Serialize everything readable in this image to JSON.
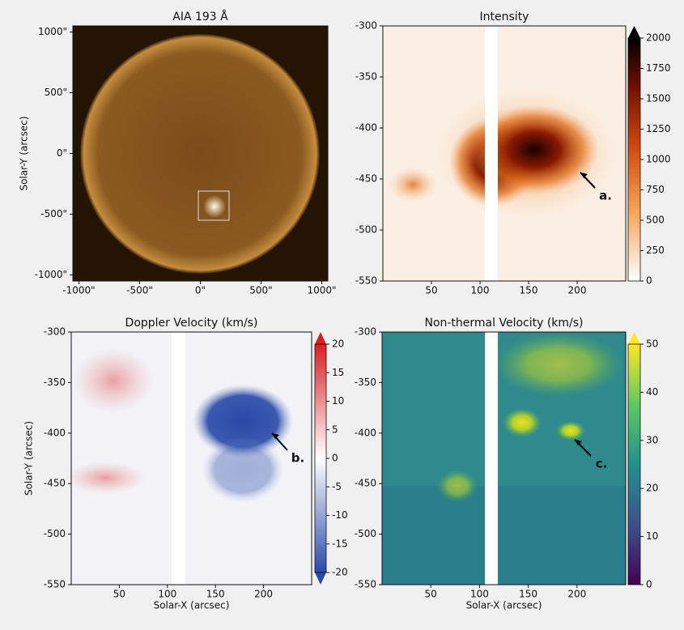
{
  "chart_data": [
    {
      "type": "image",
      "title": "AIA 193 Å",
      "ylabel": "Solar-Y (arcsec)",
      "xlim": [
        -1050,
        1050
      ],
      "ylim": [
        -1050,
        1050
      ],
      "xticks": [
        {
          "value": -1000,
          "label": "-1000\""
        },
        {
          "value": -500,
          "label": "-500\""
        },
        {
          "value": 0,
          "label": "0\""
        },
        {
          "value": 500,
          "label": "500\""
        },
        {
          "value": 1000,
          "label": "1000\""
        }
      ],
      "yticks": [
        {
          "value": -1000,
          "label": "-1000\""
        },
        {
          "value": -500,
          "label": "-500\""
        },
        {
          "value": 0,
          "label": "0\""
        },
        {
          "value": 500,
          "label": "500\""
        },
        {
          "value": 1000,
          "label": "1000\""
        }
      ]
    },
    {
      "type": "image",
      "title": "Intensity",
      "xlim": [
        0,
        250
      ],
      "ylim": [
        -550,
        -300
      ],
      "xticks": [
        50,
        100,
        150,
        200
      ],
      "yticks": [
        -300,
        -350,
        -400,
        -450,
        -500,
        -550
      ],
      "colorbar": {
        "lim": [
          0,
          2000
        ],
        "ticks": [
          0,
          250,
          500,
          750,
          1000,
          1250,
          1500,
          1750,
          2000
        ]
      },
      "annotation": "a."
    },
    {
      "type": "image",
      "title": "Doppler Velocity (km/s)",
      "xlabel": "Solar-X (arcsec)",
      "ylabel": "Solar-Y (arcsec)",
      "xlim": [
        0,
        250
      ],
      "ylim": [
        -550,
        -300
      ],
      "xticks": [
        50,
        100,
        150,
        200
      ],
      "yticks": [
        -300,
        -350,
        -400,
        -450,
        -500,
        -550
      ],
      "colorbar": {
        "lim": [
          -20,
          20
        ],
        "ticks": [
          -20,
          -15,
          -10,
          -5,
          0,
          5,
          10,
          15,
          20
        ]
      },
      "annotation": "b."
    },
    {
      "type": "image",
      "title": "Non-thermal Velocity (km/s)",
      "xlabel": "Solar-X (arcsec)",
      "xlim": [
        0,
        250
      ],
      "ylim": [
        -550,
        -300
      ],
      "xticks": [
        50,
        100,
        150,
        200
      ],
      "yticks": [
        -300,
        -350,
        -400,
        -450,
        -500,
        -550
      ],
      "colorbar": {
        "lim": [
          0,
          50
        ],
        "ticks": [
          0,
          10,
          20,
          30,
          40,
          50
        ]
      },
      "annotation": "c."
    }
  ]
}
